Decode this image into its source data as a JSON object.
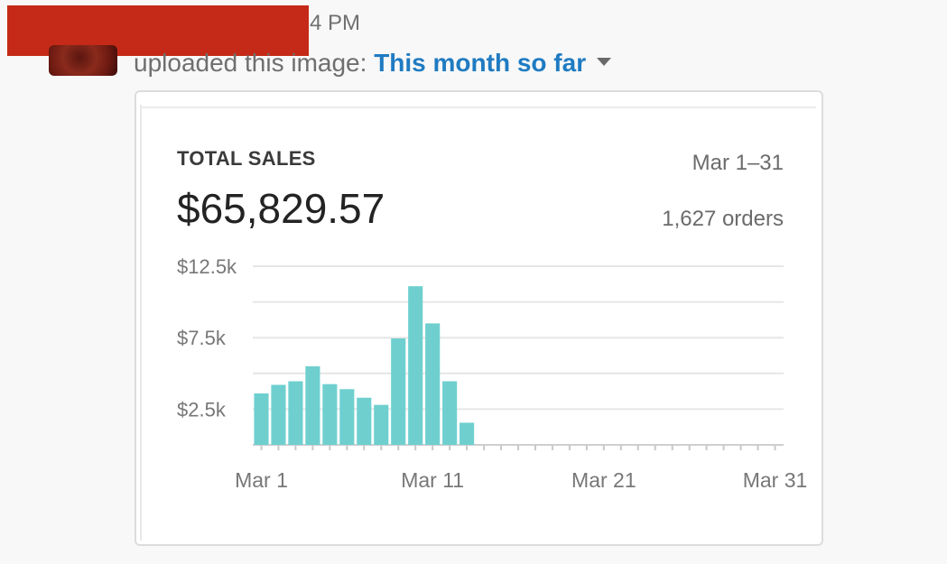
{
  "message": {
    "time": "4 PM",
    "action_text": "uploaded this image: ",
    "file_name": "This month so far"
  },
  "card": {
    "label": "TOTAL SALES",
    "total": "$65,829.57",
    "date_range": "Mar 1–31",
    "orders": "1,627 orders"
  },
  "colors": {
    "bar": "#6fcfcf",
    "link": "#1f7bc2",
    "redaction": "#c42a17"
  },
  "chart_data": {
    "type": "bar",
    "x": [
      1,
      2,
      3,
      4,
      5,
      6,
      7,
      8,
      9,
      10,
      11,
      12,
      13,
      14,
      15,
      16,
      17,
      18,
      19,
      20,
      21,
      22,
      23,
      24,
      25,
      26,
      27,
      28,
      29,
      30,
      31
    ],
    "values": [
      3600,
      4200,
      4450,
      5500,
      4250,
      3900,
      3300,
      2800,
      7450,
      11100,
      8500,
      4450,
      1550,
      0,
      0,
      0,
      0,
      0,
      0,
      0,
      0,
      0,
      0,
      0,
      0,
      0,
      0,
      0,
      0,
      0,
      0
    ],
    "y_ticks": [
      {
        "value": 2500,
        "label": "$2.5k"
      },
      {
        "value": 7500,
        "label": "$7.5k"
      },
      {
        "value": 12500,
        "label": "$12.5k"
      }
    ],
    "x_ticks": [
      {
        "value": 1,
        "label": "Mar 1"
      },
      {
        "value": 11,
        "label": "Mar 11"
      },
      {
        "value": 21,
        "label": "Mar 21"
      },
      {
        "value": 31,
        "label": "Mar 31"
      }
    ],
    "ylim": [
      0,
      12500
    ],
    "grid": true
  }
}
